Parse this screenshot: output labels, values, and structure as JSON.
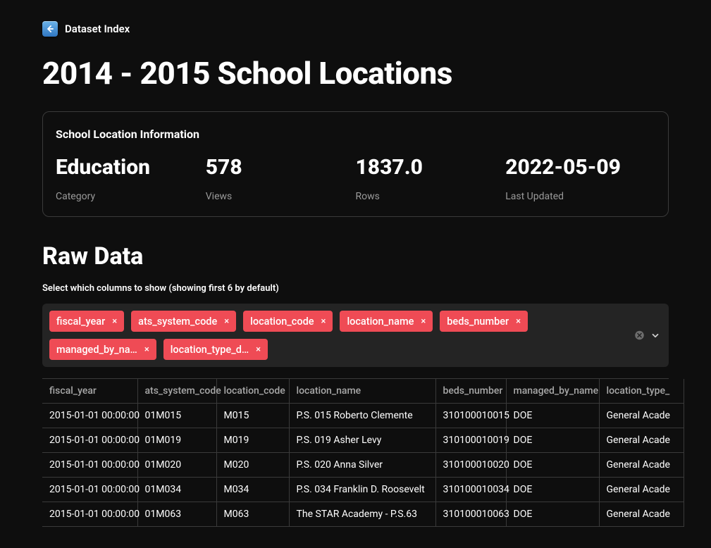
{
  "nav": {
    "back_label": "Dataset Index"
  },
  "page": {
    "title": "2014 - 2015 School Locations"
  },
  "info_card": {
    "title": "School Location Information",
    "stats": [
      {
        "value": "Education",
        "label": "Category"
      },
      {
        "value": "578",
        "label": "Views"
      },
      {
        "value": "1837.0",
        "label": "Rows"
      },
      {
        "value": "2022-05-09",
        "label": "Last Updated"
      }
    ]
  },
  "raw": {
    "heading": "Raw Data",
    "helper": "Select which columns to show (showing first 6 by default)",
    "chips": [
      "fiscal_year",
      "ats_system_code",
      "location_code",
      "location_name",
      "beds_number",
      "managed_by_na…",
      "location_type_d…"
    ],
    "columns": [
      "fiscal_year",
      "ats_system_code",
      "location_code",
      "location_name",
      "beds_number",
      "managed_by_name",
      "location_type_"
    ],
    "rows": [
      [
        "2015-01-01 00:00:00",
        "01M015",
        "M015",
        "P.S. 015 Roberto Clemente",
        "310100010015",
        "DOE",
        "General Acade"
      ],
      [
        "2015-01-01 00:00:00",
        "01M019",
        "M019",
        "P.S. 019 Asher Levy",
        "310100010019",
        "DOE",
        "General Acade"
      ],
      [
        "2015-01-01 00:00:00",
        "01M020",
        "M020",
        "P.S. 020 Anna Silver",
        "310100010020",
        "DOE",
        "General Acade"
      ],
      [
        "2015-01-01 00:00:00",
        "01M034",
        "M034",
        "P.S. 034 Franklin D. Roosevelt",
        "310100010034",
        "DOE",
        "General Acade"
      ],
      [
        "2015-01-01 00:00:00",
        "01M063",
        "M063",
        "The STAR Academy - P.S.63",
        "310100010063",
        "DOE",
        "General Acade"
      ]
    ]
  },
  "colors": {
    "bg": "#0e0e0e",
    "border": "#3a3a3a",
    "chip_bg": "#ef4b55",
    "chipbar_bg": "#242424",
    "muted": "#9a9a9a"
  }
}
